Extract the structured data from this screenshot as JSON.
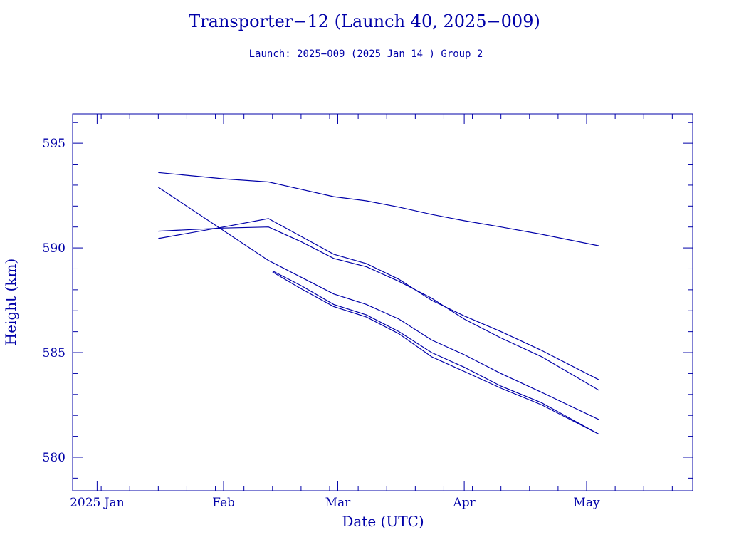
{
  "chart_data": {
    "type": "line",
    "title": "Transporter−12 (Launch 40, 2025−009)",
    "subtitle": "Launch: 2025−009  (2025 Jan 14 )  Group 2",
    "xlabel": "Date (UTC)",
    "ylabel": "Height (km)",
    "x_ticks": [
      {
        "label": "2025 Jan",
        "date": "2025-01-01"
      },
      {
        "label": "Feb",
        "date": "2025-02-01"
      },
      {
        "label": "Mar",
        "date": "2025-03-01"
      },
      {
        "label": "Apr",
        "date": "2025-04-01"
      },
      {
        "label": "May",
        "date": "2025-05-01"
      }
    ],
    "y_ticks": [
      580,
      585,
      590,
      595
    ],
    "xlim": [
      "2024-12-26",
      "2025-05-27"
    ],
    "ylim": [
      578.4,
      596.4
    ],
    "grid": false,
    "color": "#0000a8",
    "series": [
      {
        "x": [
          "2025-01-16",
          "2025-02-01",
          "2025-02-12",
          "2025-02-20",
          "2025-02-28",
          "2025-03-08",
          "2025-03-16",
          "2025-03-24",
          "2025-04-01",
          "2025-04-10",
          "2025-04-20",
          "2025-05-04"
        ],
        "y": [
          593.6,
          593.3,
          593.15,
          592.8,
          592.45,
          592.25,
          591.95,
          591.6,
          591.3,
          591.0,
          590.65,
          590.1
        ]
      },
      {
        "x": [
          "2025-01-16",
          "2025-02-01",
          "2025-02-12",
          "2025-02-20",
          "2025-02-28",
          "2025-03-08",
          "2025-03-16",
          "2025-03-24",
          "2025-04-01",
          "2025-04-10",
          "2025-04-20",
          "2025-05-04"
        ],
        "y": [
          590.8,
          590.95,
          591.0,
          590.3,
          589.5,
          589.1,
          588.4,
          587.6,
          586.6,
          585.7,
          584.8,
          583.2
        ]
      },
      {
        "x": [
          "2025-01-16",
          "2025-02-01",
          "2025-02-12",
          "2025-02-20",
          "2025-02-28",
          "2025-03-08",
          "2025-03-16",
          "2025-03-24",
          "2025-04-01",
          "2025-04-10",
          "2025-04-20",
          "2025-05-04"
        ],
        "y": [
          590.45,
          591.0,
          591.4,
          590.55,
          589.7,
          589.25,
          588.5,
          587.5,
          586.75,
          586.0,
          585.1,
          583.7
        ]
      },
      {
        "x": [
          "2025-01-16",
          "2025-02-12",
          "2025-02-20",
          "2025-02-28",
          "2025-03-08",
          "2025-03-16",
          "2025-03-24",
          "2025-04-01",
          "2025-04-10",
          "2025-04-20",
          "2025-05-04"
        ],
        "y": [
          592.9,
          589.4,
          588.6,
          587.8,
          587.3,
          586.6,
          585.6,
          584.9,
          584.0,
          583.1,
          581.8
        ]
      },
      {
        "x": [
          "2025-02-13",
          "2025-02-20",
          "2025-02-28",
          "2025-03-08",
          "2025-03-16",
          "2025-03-24",
          "2025-04-01",
          "2025-04-10",
          "2025-04-20",
          "2025-05-04"
        ],
        "y": [
          588.9,
          588.2,
          587.3,
          586.8,
          586.0,
          585.0,
          584.3,
          583.4,
          582.6,
          581.1
        ]
      },
      {
        "x": [
          "2025-02-13",
          "2025-02-20",
          "2025-02-28",
          "2025-03-08",
          "2025-03-16",
          "2025-03-24",
          "2025-04-01",
          "2025-04-10",
          "2025-04-20",
          "2025-05-04"
        ],
        "y": [
          588.85,
          588.05,
          587.2,
          586.7,
          585.9,
          584.8,
          584.1,
          583.3,
          582.5,
          581.1
        ]
      }
    ]
  }
}
